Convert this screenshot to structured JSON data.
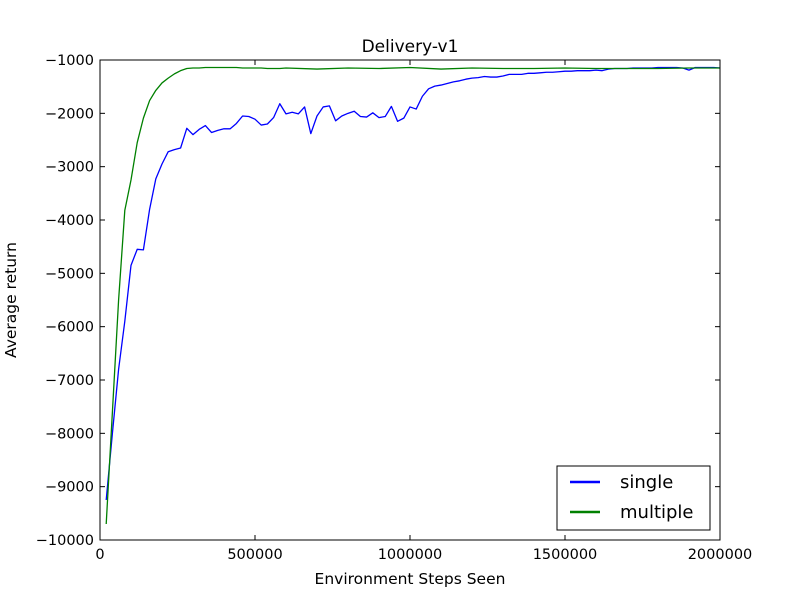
{
  "chart_data": {
    "type": "line",
    "title": "Delivery-v1",
    "xlabel": "Environment Steps Seen",
    "ylabel": "Average return",
    "xlim": [
      0,
      2000000
    ],
    "ylim": [
      -10000,
      -1000
    ],
    "xticks": [
      0,
      500000,
      1000000,
      1500000,
      2000000
    ],
    "xtick_labels": [
      "0",
      "500000",
      "1000000",
      "1500000",
      "2000000"
    ],
    "yticks": [
      -1000,
      -2000,
      -3000,
      -4000,
      -5000,
      -6000,
      -7000,
      -8000,
      -9000,
      -10000
    ],
    "ytick_labels": [
      "−1000",
      "−2000",
      "−3000",
      "−4000",
      "−5000",
      "−6000",
      "−7000",
      "−8000",
      "−9000",
      "−10000"
    ],
    "grid": false,
    "legend_position": "lower-right",
    "series": [
      {
        "name": "single",
        "color": "#0000ff",
        "x": [
          20000,
          40000,
          60000,
          80000,
          100000,
          120000,
          140000,
          160000,
          180000,
          200000,
          220000,
          240000,
          260000,
          280000,
          300000,
          320000,
          340000,
          360000,
          380000,
          400000,
          420000,
          440000,
          460000,
          480000,
          500000,
          520000,
          540000,
          560000,
          580000,
          600000,
          620000,
          640000,
          660000,
          680000,
          700000,
          720000,
          740000,
          760000,
          780000,
          800000,
          820000,
          840000,
          860000,
          880000,
          900000,
          920000,
          940000,
          960000,
          980000,
          1000000,
          1020000,
          1040000,
          1060000,
          1080000,
          1100000,
          1120000,
          1140000,
          1160000,
          1180000,
          1200000,
          1220000,
          1240000,
          1260000,
          1280000,
          1300000,
          1320000,
          1340000,
          1360000,
          1380000,
          1400000,
          1420000,
          1440000,
          1460000,
          1480000,
          1500000,
          1520000,
          1540000,
          1560000,
          1580000,
          1600000,
          1620000,
          1640000,
          1660000,
          1680000,
          1700000,
          1720000,
          1740000,
          1760000,
          1780000,
          1800000,
          1820000,
          1840000,
          1860000,
          1880000,
          1900000,
          1920000,
          1940000,
          1960000,
          1980000,
          2000000
        ],
        "y": [
          -9250,
          -8000,
          -6800,
          -5900,
          -4850,
          -4550,
          -4560,
          -3800,
          -3230,
          -2950,
          -2720,
          -2680,
          -2650,
          -2280,
          -2400,
          -2300,
          -2230,
          -2360,
          -2320,
          -2290,
          -2290,
          -2190,
          -2050,
          -2060,
          -2110,
          -2220,
          -2200,
          -2080,
          -1820,
          -2010,
          -1980,
          -2010,
          -1880,
          -2380,
          -2050,
          -1880,
          -1860,
          -2140,
          -2050,
          -2000,
          -1960,
          -2060,
          -2070,
          -1990,
          -2080,
          -2060,
          -1870,
          -2150,
          -2090,
          -1880,
          -1920,
          -1680,
          -1540,
          -1490,
          -1470,
          -1440,
          -1410,
          -1390,
          -1360,
          -1340,
          -1330,
          -1310,
          -1320,
          -1320,
          -1300,
          -1270,
          -1270,
          -1270,
          -1250,
          -1250,
          -1240,
          -1230,
          -1230,
          -1220,
          -1210,
          -1210,
          -1200,
          -1200,
          -1200,
          -1190,
          -1200,
          -1170,
          -1160,
          -1160,
          -1160,
          -1150,
          -1150,
          -1150,
          -1150,
          -1140,
          -1140,
          -1140,
          -1140,
          -1150,
          -1190,
          -1140,
          -1140,
          -1140,
          -1140,
          -1150
        ]
      },
      {
        "name": "multiple",
        "color": "#008000",
        "x": [
          20000,
          40000,
          60000,
          80000,
          100000,
          120000,
          140000,
          160000,
          180000,
          200000,
          220000,
          240000,
          260000,
          280000,
          300000,
          320000,
          340000,
          360000,
          380000,
          400000,
          420000,
          440000,
          460000,
          480000,
          500000,
          520000,
          540000,
          560000,
          580000,
          600000,
          700000,
          800000,
          900000,
          1000000,
          1100000,
          1200000,
          1300000,
          1400000,
          1500000,
          1600000,
          1700000,
          1800000,
          1900000,
          2000000
        ],
        "y": [
          -9700,
          -7600,
          -5500,
          -3820,
          -3250,
          -2550,
          -2090,
          -1760,
          -1570,
          -1430,
          -1340,
          -1260,
          -1200,
          -1160,
          -1150,
          -1150,
          -1140,
          -1140,
          -1140,
          -1140,
          -1140,
          -1140,
          -1150,
          -1150,
          -1150,
          -1150,
          -1160,
          -1160,
          -1160,
          -1150,
          -1170,
          -1150,
          -1160,
          -1140,
          -1170,
          -1150,
          -1160,
          -1160,
          -1150,
          -1160,
          -1160,
          -1160,
          -1150,
          -1150
        ]
      }
    ]
  }
}
